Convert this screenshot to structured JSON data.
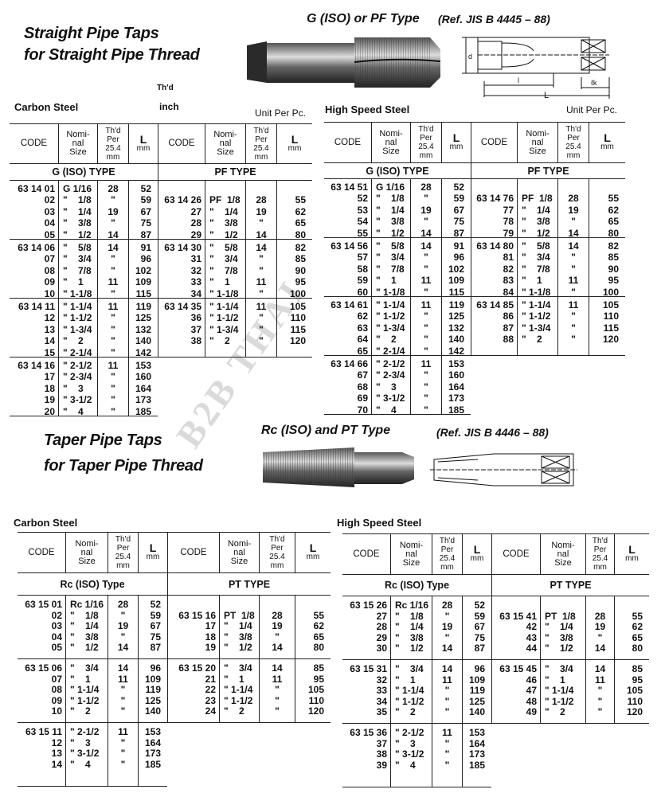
{
  "straight": {
    "title_line1": "Straight Pipe Taps",
    "title_line2": "for Straight Pipe Thread",
    "type_heading": "G (ISO) or PF Type",
    "reference": "(Ref. JIS B 4445 – 88)",
    "thd_label": "Th'd",
    "inch_label": "inch",
    "carbon_label": "Carbon Steel",
    "hss_label": "High Speed Steel",
    "unit_left": "Unit Per Pc.",
    "unit_right": "Unit Per Pc.",
    "diagram_labels": {
      "d": "d",
      "l": "l",
      "L": "L",
      "lk": "ℓk"
    }
  },
  "taper": {
    "title_line1": "Taper Pipe Taps",
    "title_line2": "for Taper Pipe Thread",
    "type_heading": "Rc (ISO) and PT Type",
    "reference": "(Ref. JIS B 4446 – 88)",
    "carbon_label": "Carbon Steel",
    "hss_label": "High Speed Steel"
  },
  "headers": {
    "code": "CODE",
    "size": "Nomi-\nnal\nSize",
    "thd": "Th'd\nPer\n25.4\nmm",
    "l_big": "L",
    "l_unit": "mm"
  },
  "watermark": "B2B THAI",
  "tables": [
    {
      "id": "straight-carbon",
      "halves": [
        {
          "type": "G (ISO) TYPE",
          "groups": [
            [
              [
                "63 14 01",
                "G 1/16",
                "28",
                "52"
              ],
              [
                "02",
                "\"    1/8",
                "\"",
                "59"
              ],
              [
                "03",
                "\"    1/4",
                "19",
                "67"
              ],
              [
                "04",
                "\"    3/8",
                "\"",
                "75"
              ],
              [
                "05",
                "\"    1/2",
                "14",
                "87"
              ]
            ],
            [
              [
                "63 14 06",
                "\"    5/8",
                "14",
                "91"
              ],
              [
                "07",
                "\"    3/4",
                "\"",
                "96"
              ],
              [
                "08",
                "\"    7/8",
                "\"",
                "102"
              ],
              [
                "09",
                "\"    1",
                "11",
                "109"
              ],
              [
                "10",
                "\" 1-1/8",
                "\"",
                "115"
              ]
            ],
            [
              [
                "63 14 11",
                "\" 1-1/4",
                "11",
                "119"
              ],
              [
                "12",
                "\" 1-1/2",
                "\"",
                "125"
              ],
              [
                "13",
                "\" 1-3/4",
                "\"",
                "132"
              ],
              [
                "14",
                "\"    2",
                "\"",
                "140"
              ],
              [
                "15",
                "\" 2-1/4",
                "\"",
                "142"
              ]
            ],
            [
              [
                "63 14 16",
                "\" 2-1/2",
                "11",
                "153"
              ],
              [
                "17",
                "\" 2-3/4",
                "\"",
                "160"
              ],
              [
                "18",
                "\"    3",
                "\"",
                "164"
              ],
              [
                "19",
                "\" 3-1/2",
                "\"",
                "173"
              ],
              [
                "20",
                "\"    4",
                "\"",
                "185"
              ]
            ]
          ]
        },
        {
          "type": "PF TYPE",
          "groups": [
            [
              null,
              [
                "63 14 26",
                "PF  1/8",
                "28",
                "55"
              ],
              [
                "27",
                "\"    1/4",
                "19",
                "62"
              ],
              [
                "28",
                "\"    3/8",
                "\"",
                "65"
              ],
              [
                "29",
                "\"    1/2",
                "14",
                "80"
              ]
            ],
            [
              [
                "63 14 30",
                "\"    5/8",
                "14",
                "82"
              ],
              [
                "31",
                "\"    3/4",
                "\"",
                "85"
              ],
              [
                "32",
                "\"    7/8",
                "\"",
                "90"
              ],
              [
                "33",
                "\"    1",
                "11",
                "95"
              ],
              [
                "34",
                "\" 1-1/8",
                "\"",
                "100"
              ]
            ],
            [
              [
                "63 14 35",
                "\" 1-1/4",
                "11",
                "105"
              ],
              [
                "36",
                "\" 1-1/2",
                "\"",
                "110"
              ],
              [
                "37",
                "\" 1-3/4",
                "\"",
                "115"
              ],
              [
                "38",
                "\"    2",
                "\"",
                "120"
              ]
            ]
          ]
        }
      ]
    },
    {
      "id": "straight-hss",
      "halves": [
        {
          "type": "G (ISO) TYPE",
          "groups": [
            [
              [
                "63 14 51",
                "G 1/16",
                "28",
                "52"
              ],
              [
                "52",
                "\"    1/8",
                "\"",
                "59"
              ],
              [
                "53",
                "\"    1/4",
                "19",
                "67"
              ],
              [
                "54",
                "\"    3/8",
                "\"",
                "75"
              ],
              [
                "55",
                "\"    1/2",
                "14",
                "87"
              ]
            ],
            [
              [
                "63 14 56",
                "\"    5/8",
                "14",
                "91"
              ],
              [
                "57",
                "\"    3/4",
                "\"",
                "96"
              ],
              [
                "58",
                "\"    7/8",
                "\"",
                "102"
              ],
              [
                "59",
                "\"    1",
                "11",
                "109"
              ],
              [
                "60",
                "\" 1-1/8",
                "\"",
                "115"
              ]
            ],
            [
              [
                "63 14 61",
                "\" 1-1/4",
                "11",
                "119"
              ],
              [
                "62",
                "\" 1-1/2",
                "\"",
                "125"
              ],
              [
                "63",
                "\" 1-3/4",
                "\"",
                "132"
              ],
              [
                "64",
                "\"    2",
                "\"",
                "140"
              ],
              [
                "65",
                "\" 2-1/4",
                "\"",
                "142"
              ]
            ],
            [
              [
                "63 14 66",
                "\" 2-1/2",
                "11",
                "153"
              ],
              [
                "67",
                "\" 2-3/4",
                "\"",
                "160"
              ],
              [
                "68",
                "\"    3",
                "\"",
                "164"
              ],
              [
                "69",
                "\" 3-1/2",
                "\"",
                "173"
              ],
              [
                "70",
                "\"    4",
                "\"",
                "185"
              ]
            ]
          ]
        },
        {
          "type": "PF TYPE",
          "groups": [
            [
              null,
              [
                "63 14 76",
                "PF  1/8",
                "28",
                "55"
              ],
              [
                "77",
                "\"    1/4",
                "19",
                "62"
              ],
              [
                "78",
                "\"    3/8",
                "\"",
                "65"
              ],
              [
                "79",
                "\"    1/2",
                "14",
                "80"
              ]
            ],
            [
              [
                "63 14 80",
                "\"    5/8",
                "14",
                "82"
              ],
              [
                "81",
                "\"    3/4",
                "\"",
                "85"
              ],
              [
                "82",
                "\"    7/8",
                "\"",
                "90"
              ],
              [
                "83",
                "\"    1",
                "11",
                "95"
              ],
              [
                "84",
                "\" 1-1/8",
                "\"",
                "100"
              ]
            ],
            [
              [
                "63 14 85",
                "\" 1-1/4",
                "11",
                "105"
              ],
              [
                "86",
                "\" 1-1/2",
                "\"",
                "110"
              ],
              [
                "87",
                "\" 1-3/4",
                "\"",
                "115"
              ],
              [
                "88",
                "\"    2",
                "\"",
                "120"
              ]
            ]
          ]
        }
      ]
    },
    {
      "id": "taper-carbon",
      "halves": [
        {
          "type": "Rc (ISO) Type",
          "groups": [
            [
              [
                "63 15 01",
                "Rc 1/16",
                "28",
                "52"
              ],
              [
                "02",
                "\"    1/8",
                "\"",
                "59"
              ],
              [
                "03",
                "\"    1/4",
                "19",
                "67"
              ],
              [
                "04",
                "\"    3/8",
                "\"",
                "75"
              ],
              [
                "05",
                "\"    1/2",
                "14",
                "87"
              ]
            ],
            [
              [
                "63 15 06",
                "\"    3/4",
                "14",
                "96"
              ],
              [
                "07",
                "\"    1",
                "11",
                "109"
              ],
              [
                "08",
                "\" 1-1/4",
                "\"",
                "119"
              ],
              [
                "09",
                "\" 1-1/2",
                "\"",
                "125"
              ],
              [
                "10",
                "\"    2",
                "\"",
                "140"
              ]
            ],
            [
              [
                "63 15 11",
                "\" 2-1/2",
                "11",
                "153"
              ],
              [
                "12",
                "\"    3",
                "\"",
                "164"
              ],
              [
                "13",
                "\" 3-1/2",
                "\"",
                "173"
              ],
              [
                "14",
                "\"    4",
                "\"",
                "185"
              ]
            ]
          ]
        },
        {
          "type": "PT TYPE",
          "groups": [
            [
              null,
              [
                "63 15 16",
                "PT  1/8",
                "28",
                "55"
              ],
              [
                "17",
                "\"    1/4",
                "19",
                "62"
              ],
              [
                "18",
                "\"    3/8",
                "\"",
                "65"
              ],
              [
                "19",
                "\"    1/2",
                "14",
                "80"
              ]
            ],
            [
              [
                "63 15 20",
                "\"    3/4",
                "14",
                "85"
              ],
              [
                "21",
                "\"    1",
                "11",
                "95"
              ],
              [
                "22",
                "\" 1-1/4",
                "\"",
                "105"
              ],
              [
                "23",
                "\" 1-1/2",
                "\"",
                "110"
              ],
              [
                "24",
                "\"    2",
                "\"",
                "120"
              ]
            ]
          ]
        }
      ]
    },
    {
      "id": "taper-hss",
      "halves": [
        {
          "type": "Rc (ISO) Type",
          "groups": [
            [
              [
                "63 15 26",
                "Rc 1/16",
                "28",
                "52"
              ],
              [
                "27",
                "\"    1/8",
                "\"",
                "59"
              ],
              [
                "28",
                "\"    1/4",
                "19",
                "67"
              ],
              [
                "29",
                "\"    3/8",
                "\"",
                "75"
              ],
              [
                "30",
                "\"    1/2",
                "14",
                "87"
              ]
            ],
            [
              [
                "63 15 31",
                "\"    3/4",
                "14",
                "96"
              ],
              [
                "32",
                "\"    1",
                "11",
                "109"
              ],
              [
                "33",
                "\" 1-1/4",
                "\"",
                "119"
              ],
              [
                "34",
                "\" 1-1/2",
                "\"",
                "125"
              ],
              [
                "35",
                "\"    2",
                "\"",
                "140"
              ]
            ],
            [
              [
                "63 15 36",
                "\" 2-1/2",
                "11",
                "153"
              ],
              [
                "37",
                "\"    3",
                "\"",
                "164"
              ],
              [
                "38",
                "\" 3-1/2",
                "\"",
                "173"
              ],
              [
                "39",
                "\"    4",
                "\"",
                "185"
              ]
            ]
          ]
        },
        {
          "type": "PT TYPE",
          "groups": [
            [
              null,
              [
                "63 15 41",
                "PT  1/8",
                "28",
                "55"
              ],
              [
                "42",
                "\"    1/4",
                "19",
                "62"
              ],
              [
                "43",
                "\"    3/8",
                "\"",
                "65"
              ],
              [
                "44",
                "\"    1/2",
                "14",
                "80"
              ]
            ],
            [
              [
                "63 15 45",
                "\"    3/4",
                "14",
                "85"
              ],
              [
                "46",
                "\"    1",
                "11",
                "95"
              ],
              [
                "47",
                "\" 1-1/4",
                "\"",
                "105"
              ],
              [
                "48",
                "\" 1-1/2",
                "\"",
                "110"
              ],
              [
                "49",
                "\"    2",
                "\"",
                "120"
              ]
            ]
          ]
        }
      ]
    }
  ]
}
